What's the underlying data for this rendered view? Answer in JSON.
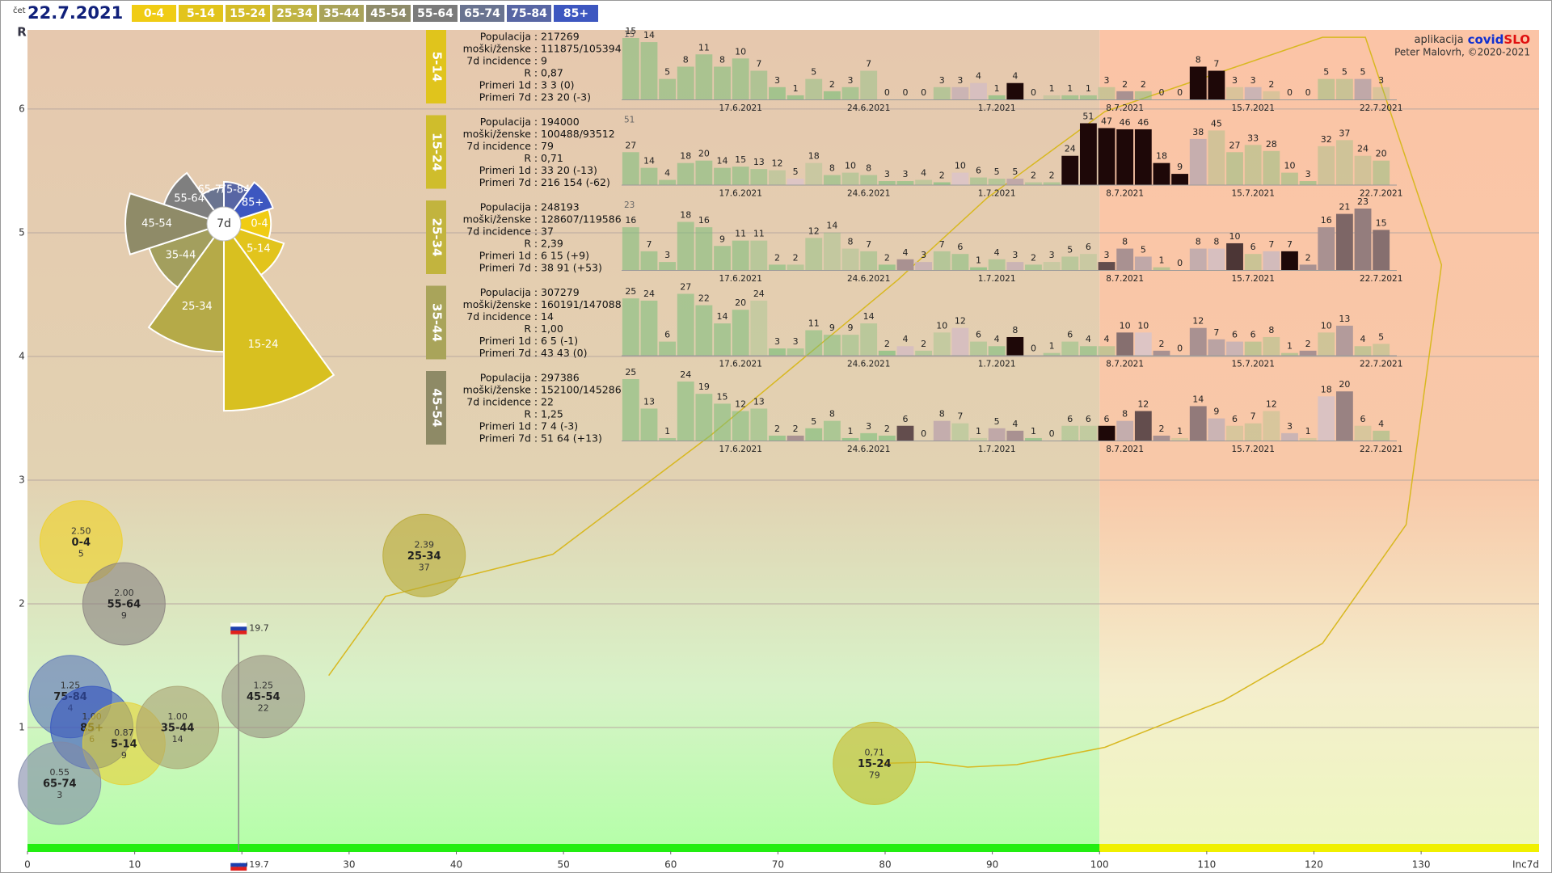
{
  "header": {
    "day": "čet",
    "date": "22.7.2021",
    "groups": [
      {
        "name": "0-4",
        "color": "#f0cc14"
      },
      {
        "name": "5-14",
        "color": "#e2c41c"
      },
      {
        "name": "15-24",
        "color": "#d4bc2a"
      },
      {
        "name": "25-34",
        "color": "#c0b444"
      },
      {
        "name": "35-44",
        "color": "#a9a35a"
      },
      {
        "name": "45-54",
        "color": "#8e8b6a"
      },
      {
        "name": "55-64",
        "color": "#7b7b7b"
      },
      {
        "name": "65-74",
        "color": "#6a7490"
      },
      {
        "name": "75-84",
        "color": "#5866a4"
      },
      {
        "name": "85+",
        "color": "#3d57c0"
      }
    ]
  },
  "credit": {
    "prefix": "aplikacija",
    "brand_a": "covid",
    "brand_b": "SLO",
    "author": "Peter Malovrh, ©2020-2021"
  },
  "separator": ":",
  "chart_data": [
    {
      "type": "bubble",
      "xlabel": "Inc7d",
      "ylabel": "R",
      "xlim": [
        0,
        141
      ],
      "ylim": [
        0,
        6.64
      ],
      "xticks": [
        0,
        10,
        20,
        30,
        40,
        50,
        60,
        70,
        80,
        90,
        100,
        110,
        120,
        130
      ],
      "yticks": [
        1,
        2,
        3,
        4,
        5,
        6
      ],
      "grid": true,
      "threshold_x": 100,
      "national": {
        "x": 19.7,
        "y": 1.8
      },
      "series": [
        {
          "name": "0-4",
          "color": "#f0d020",
          "x": [
            5
          ],
          "values": [
            2.5
          ],
          "value_labels": [
            "2.50"
          ]
        },
        {
          "name": "15-24",
          "color": "#c8b828",
          "x": [
            79
          ],
          "values": [
            0.71
          ],
          "value_labels": [
            "0,71"
          ],
          "trail": {
            "x": [
              28.1,
              33.4,
              49.0,
              63.7,
              81.2,
              89.5,
              100.5,
              120.8,
              124.8,
              131.9,
              128.6,
              120.8,
              111.6,
              100.5,
              92.3,
              87.7,
              84.0,
              79.7
            ],
            "y": [
              1.42,
              2.06,
              2.4,
              3.36,
              4.62,
              5.28,
              5.98,
              6.58,
              6.58,
              4.74,
              2.64,
              1.68,
              1.22,
              0.84,
              0.7,
              0.68,
              0.72,
              0.71
            ]
          }
        },
        {
          "name": "55-64",
          "color": "#888080",
          "x": [
            9
          ],
          "values": [
            2.0
          ],
          "value_labels": [
            "2.00"
          ]
        },
        {
          "name": "25-34",
          "color": "#b8a830",
          "x": [
            37
          ],
          "values": [
            2.39
          ],
          "value_labels": [
            "2.39"
          ]
        },
        {
          "name": "75-84",
          "color": "#5870b8",
          "x": [
            4
          ],
          "values": [
            1.25
          ],
          "value_labels": [
            "1.25"
          ]
        },
        {
          "name": "85+",
          "color": "#3050c0",
          "x": [
            6
          ],
          "values": [
            1.0
          ],
          "value_labels": [
            "1.00"
          ]
        },
        {
          "name": "5-14",
          "color": "#e8d030",
          "x": [
            9
          ],
          "values": [
            0.87
          ],
          "value_labels": [
            "0.87"
          ]
        },
        {
          "name": "35-44",
          "color": "#a8a070",
          "x": [
            14
          ],
          "values": [
            1.0
          ],
          "value_labels": [
            "1.00"
          ]
        },
        {
          "name": "45-54",
          "color": "#989080",
          "x": [
            22
          ],
          "values": [
            1.25
          ],
          "value_labels": [
            "1.25"
          ]
        },
        {
          "name": "65-74",
          "color": "#8088a8",
          "x": [
            3
          ],
          "values": [
            0.55
          ],
          "value_labels": [
            "0.55"
          ]
        }
      ]
    },
    {
      "type": "rose",
      "center_label": "7d",
      "categories": [
        "0-4",
        "5-14",
        "15-24",
        "25-34",
        "35-44",
        "45-54",
        "55-64",
        "65-74",
        "75-84",
        "85+"
      ],
      "values": [
        5,
        9,
        79,
        37,
        14,
        22,
        9,
        3,
        4,
        6
      ],
      "colors": [
        "#f0cc14",
        "#e2c41c",
        "#d8c020",
        "#b5aa48",
        "#a39f5e",
        "#8f8b68",
        "#7f7f7f",
        "#6a7490",
        "#5866a4",
        "#3d57c0"
      ]
    },
    {
      "type": "bar",
      "title": "5-14",
      "color": "#e0c41c",
      "stats": {
        "labels": [
          "Populacija",
          "moški/ženske",
          "7d incidence",
          "R",
          "Primeri 1d",
          "Primeri 7d"
        ],
        "values": [
          217269,
          "111875/105394",
          9,
          "0,87",
          "3 3 (0)",
          "23 20 (-3)"
        ]
      },
      "categories": [
        null,
        null,
        null,
        null,
        null,
        null,
        "17.6.2021",
        null,
        null,
        null,
        null,
        null,
        null,
        "24.6.2021",
        null,
        null,
        null,
        null,
        null,
        null,
        "1.7.2021",
        null,
        null,
        null,
        null,
        null,
        null,
        "8.7.2021",
        null,
        null,
        null,
        null,
        null,
        null,
        "15.7.2021",
        null,
        null,
        null,
        null,
        null,
        null,
        "22.7.2021"
      ],
      "values": [
        15,
        14,
        5,
        8,
        11,
        8,
        10,
        7,
        3,
        1,
        5,
        2,
        3,
        7,
        0,
        0,
        0,
        3,
        3,
        4,
        1,
        4,
        0,
        1,
        1,
        1,
        3,
        2,
        2,
        0,
        0,
        8,
        7,
        3,
        3,
        2,
        0,
        0,
        5,
        5,
        5,
        3
      ],
      "ylim": [
        0,
        15
      ],
      "yticks": [
        15
      ]
    },
    {
      "type": "bar",
      "title": "15-24",
      "color": "#cfbd2c",
      "stats": {
        "labels": [
          "Populacija",
          "moški/ženske",
          "7d incidence",
          "R",
          "Primeri 1d",
          "Primeri 7d"
        ],
        "values": [
          194000,
          "100488/93512",
          79,
          "0,71",
          "33 20 (-13)",
          "216 154 (-62)"
        ]
      },
      "categories": [
        null,
        null,
        null,
        null,
        null,
        null,
        "17.6.2021",
        null,
        null,
        null,
        null,
        null,
        null,
        "24.6.2021",
        null,
        null,
        null,
        null,
        null,
        null,
        "1.7.2021",
        null,
        null,
        null,
        null,
        null,
        null,
        "8.7.2021",
        null,
        null,
        null,
        null,
        null,
        null,
        "15.7.2021",
        null,
        null,
        null,
        null,
        null,
        null,
        "22.7.2021"
      ],
      "values": [
        27,
        14,
        4,
        18,
        20,
        14,
        15,
        13,
        12,
        5,
        18,
        8,
        10,
        8,
        3,
        3,
        4,
        2,
        10,
        6,
        5,
        5,
        2,
        2,
        24,
        51,
        47,
        46,
        46,
        18,
        9,
        38,
        45,
        27,
        33,
        28,
        10,
        3,
        32,
        37,
        24,
        20
      ],
      "ylim": [
        0,
        51
      ],
      "yticks": [
        51
      ]
    },
    {
      "type": "bar",
      "title": "25-34",
      "color": "#c2b43e",
      "stats": {
        "labels": [
          "Populacija",
          "moški/ženske",
          "7d incidence",
          "R",
          "Primeri 1d",
          "Primeri 7d"
        ],
        "values": [
          248193,
          "128607/119586",
          37,
          "2,39",
          "6 15 (+9)",
          "38 91 (+53)"
        ]
      },
      "categories": [
        null,
        null,
        null,
        null,
        null,
        null,
        "17.6.2021",
        null,
        null,
        null,
        null,
        null,
        null,
        "24.6.2021",
        null,
        null,
        null,
        null,
        null,
        null,
        "1.7.2021",
        null,
        null,
        null,
        null,
        null,
        null,
        "8.7.2021",
        null,
        null,
        null,
        null,
        null,
        null,
        "15.7.2021",
        null,
        null,
        null,
        null,
        null,
        null,
        "22.7.2021"
      ],
      "values": [
        16,
        7,
        3,
        18,
        16,
        9,
        11,
        11,
        2,
        2,
        12,
        14,
        8,
        7,
        2,
        4,
        3,
        7,
        6,
        1,
        4,
        3,
        2,
        3,
        5,
        6,
        3,
        8,
        5,
        1,
        0,
        8,
        8,
        10,
        6,
        7,
        7,
        2,
        16,
        21,
        23,
        15
      ],
      "ylim": [
        0,
        23
      ],
      "yticks": [
        23
      ]
    },
    {
      "type": "bar",
      "title": "35-44",
      "color": "#a9a45a",
      "stats": {
        "labels": [
          "Populacija",
          "moški/ženske",
          "7d incidence",
          "R",
          "Primeri 1d",
          "Primeri 7d"
        ],
        "values": [
          307279,
          "160191/147088",
          14,
          "1,00",
          "6 5 (-1)",
          "43 43 (0)"
        ]
      },
      "categories": [
        null,
        null,
        null,
        null,
        null,
        null,
        "17.6.2021",
        null,
        null,
        null,
        null,
        null,
        null,
        "24.6.2021",
        null,
        null,
        null,
        null,
        null,
        null,
        "1.7.2021",
        null,
        null,
        null,
        null,
        null,
        null,
        "8.7.2021",
        null,
        null,
        null,
        null,
        null,
        null,
        "15.7.2021",
        null,
        null,
        null,
        null,
        null,
        null,
        "22.7.2021"
      ],
      "values": [
        25,
        24,
        6,
        27,
        22,
        14,
        20,
        24,
        3,
        3,
        11,
        9,
        9,
        14,
        2,
        4,
        2,
        10,
        12,
        6,
        4,
        8,
        0,
        1,
        6,
        4,
        4,
        10,
        10,
        2,
        0,
        12,
        7,
        6,
        6,
        8,
        1,
        2,
        10,
        13,
        4,
        5
      ],
      "ylim": [
        0,
        27
      ]
    },
    {
      "type": "bar",
      "title": "45-54",
      "color": "#8e8a66",
      "stats": {
        "labels": [
          "Populacija",
          "moški/ženske",
          "7d incidence",
          "R",
          "Primeri 1d",
          "Primeri 7d"
        ],
        "values": [
          297386,
          "152100/145286",
          22,
          "1,25",
          "7 4 (-3)",
          "51 64 (+13)"
        ]
      },
      "categories": [
        null,
        null,
        null,
        null,
        null,
        null,
        "17.6.2021",
        null,
        null,
        null,
        null,
        null,
        null,
        "24.6.2021",
        null,
        null,
        null,
        null,
        null,
        null,
        "1.7.2021",
        null,
        null,
        null,
        null,
        null,
        null,
        "8.7.2021",
        null,
        null,
        null,
        null,
        null,
        null,
        "15.7.2021",
        null,
        null,
        null,
        null,
        null,
        null,
        "22.7.2021"
      ],
      "values": [
        25,
        13,
        1,
        24,
        19,
        15,
        12,
        13,
        2,
        2,
        5,
        8,
        1,
        3,
        2,
        6,
        0,
        8,
        7,
        1,
        5,
        4,
        1,
        0,
        6,
        6,
        6,
        8,
        12,
        2,
        1,
        14,
        9,
        6,
        7,
        12,
        3,
        1,
        18,
        20,
        6,
        4
      ],
      "ylim": [
        0,
        25
      ]
    }
  ]
}
